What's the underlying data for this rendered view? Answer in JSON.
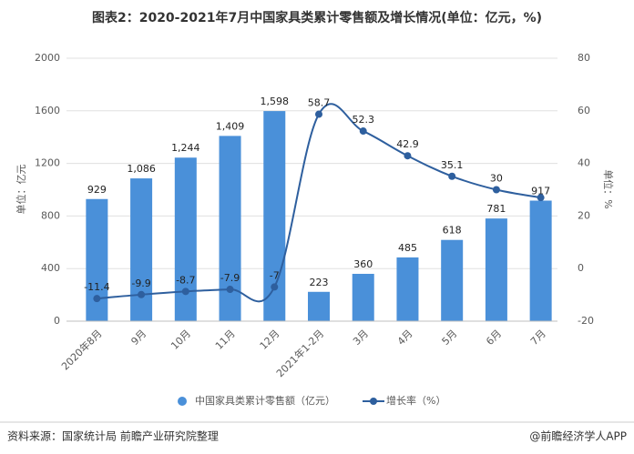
{
  "chart_data": {
    "type": "bar-line",
    "title": "图表2：2020-2021年7月中国家具类累计零售额及增长情况(单位：亿元，%)",
    "y_label": "单位：亿元",
    "y2_label": "单位：%",
    "categories": [
      "2020年8月",
      "9月",
      "10月",
      "11月",
      "12月",
      "2021年1-2月",
      "3月",
      "4月",
      "5月",
      "6月",
      "7月"
    ],
    "series": [
      {
        "name": "中国家具类累计零售额（亿元）",
        "type": "bar",
        "color": "#4a90d9",
        "values": [
          929,
          1086,
          1244,
          1409,
          1598,
          223,
          360,
          485,
          618,
          781,
          917
        ],
        "value_labels": [
          "929",
          "1,086",
          "1,244",
          "1,409",
          "1,598",
          "223",
          "360",
          "485",
          "618",
          "781",
          "917"
        ]
      },
      {
        "name": "增长率（%）",
        "type": "line",
        "axis": "y2",
        "color": "#2e5f9e",
        "values": [
          -11.4,
          -9.9,
          -8.7,
          -7.9,
          -7,
          58.7,
          52.3,
          42.9,
          35.1,
          30,
          27
        ],
        "value_labels": [
          "-11.4",
          "-9.9",
          "-8.7",
          "-7.9",
          "-7",
          "58.7",
          "52.3",
          "42.9",
          "35.1",
          "30",
          null
        ]
      }
    ],
    "ylim": [
      0,
      2000
    ],
    "yticks": [
      0,
      400,
      800,
      1200,
      1600,
      2000
    ],
    "y2lim": [
      -20,
      80
    ],
    "y2ticks": [
      -20,
      0,
      20,
      40,
      60,
      80
    ],
    "grid": true,
    "source": "资料来源：国家统计局 前瞻产业研究院整理",
    "credit": "@前瞻经济学人APP"
  }
}
